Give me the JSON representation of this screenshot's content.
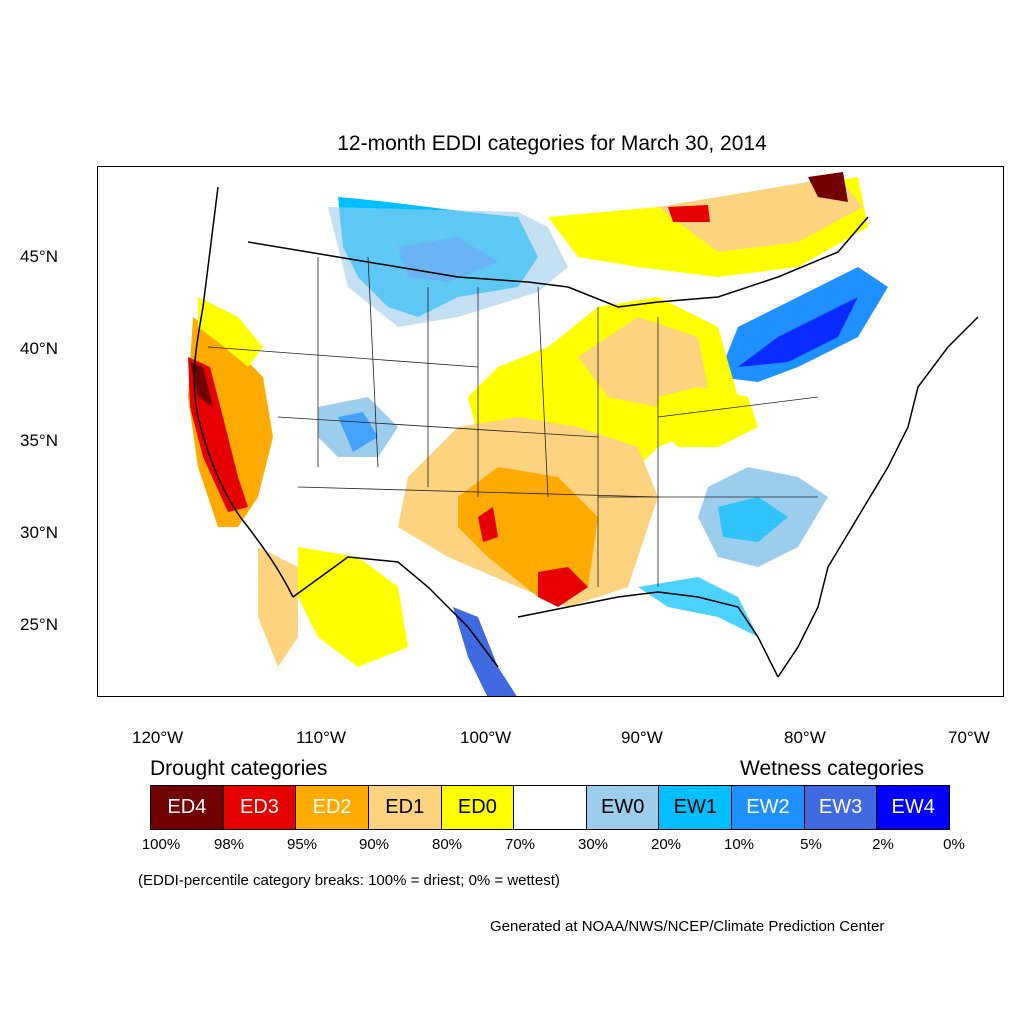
{
  "title": "12-month EDDI categories for March 30, 2014",
  "lat_labels": [
    "45°N",
    "40°N",
    "35°N",
    "30°N",
    "25°N"
  ],
  "lon_labels": [
    "120°W",
    "110°W",
    "100°W",
    "90°W",
    "80°W",
    "70°W"
  ],
  "legend": {
    "drought_heading": "Drought categories",
    "wetness_heading": "Wetness categories",
    "categories": [
      {
        "label": "ED4",
        "color": "#730000",
        "text_color": "#ffffff"
      },
      {
        "label": "ED3",
        "color": "#e60000",
        "text_color": "#ffffff"
      },
      {
        "label": "ED2",
        "color": "#ffaa00",
        "text_color": "#ffffff"
      },
      {
        "label": "ED1",
        "color": "#fcd37f",
        "text_color": "#000000"
      },
      {
        "label": "ED0",
        "color": "#ffff00",
        "text_color": "#000000"
      },
      {
        "label": "",
        "color": "#ffffff",
        "text_color": "#000000"
      },
      {
        "label": "EW0",
        "color": "#9dcdec",
        "text_color": "#000000"
      },
      {
        "label": "EW1",
        "color": "#00bfff",
        "text_color": "#000000"
      },
      {
        "label": "EW2",
        "color": "#1e90ff",
        "text_color": "#ffffff"
      },
      {
        "label": "EW3",
        "color": "#4169e1",
        "text_color": "#ffffff"
      },
      {
        "label": "EW4",
        "color": "#0000ff",
        "text_color": "#ffffff"
      }
    ],
    "breaks": [
      "100%",
      "98%",
      "95%",
      "90%",
      "80%",
      "70%",
      "30%",
      "20%",
      "10%",
      "5%",
      "2%",
      "0%"
    ]
  },
  "breaks_note": "(EDDI-percentile category breaks: 100% = driest; 0% = wettest)",
  "credit": "Generated at NOAA/NWS/NCEP/Climate Prediction Center"
}
